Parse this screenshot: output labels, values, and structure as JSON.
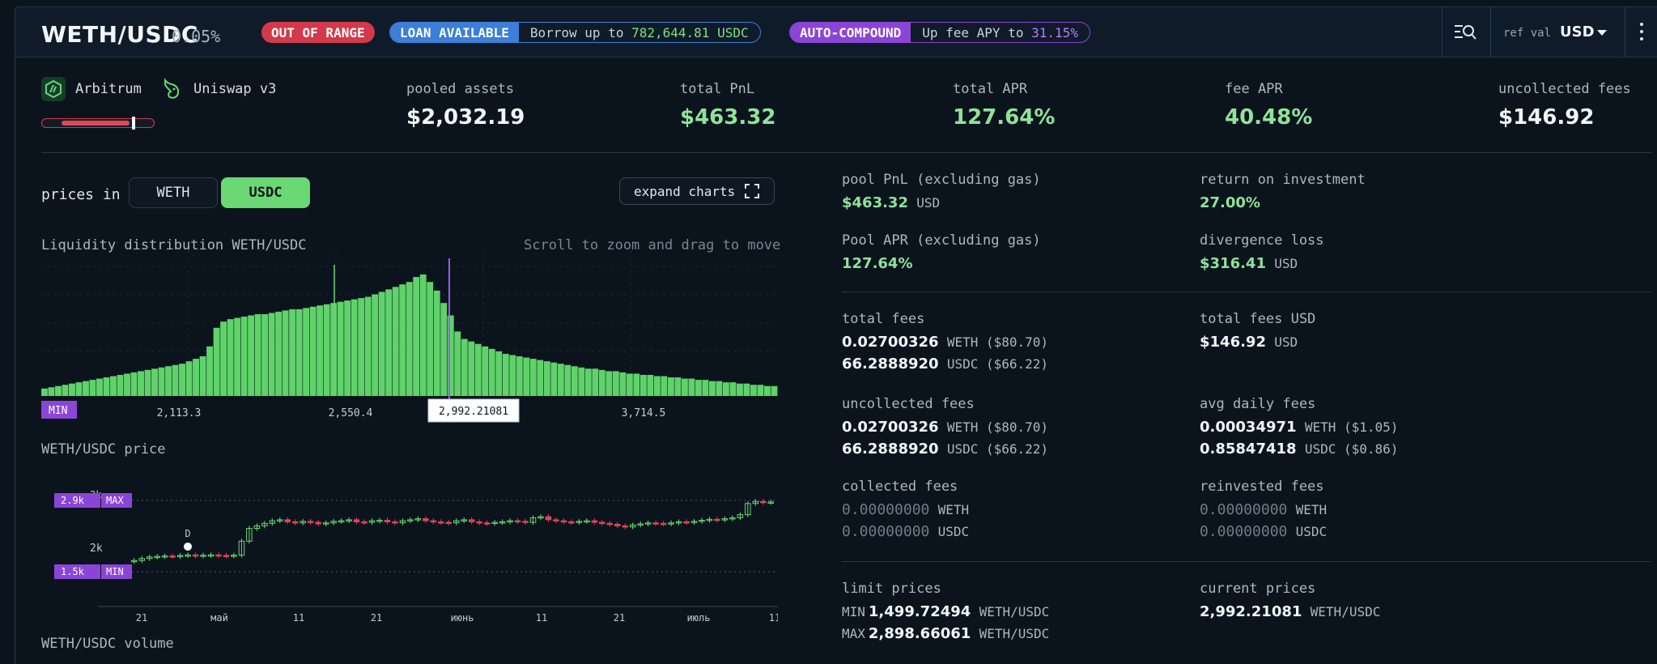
{
  "header": {
    "pair": "WETH/USDC",
    "fee_tier": "0.05%",
    "range_badge": "OUT OF RANGE",
    "loan_tag": "LOAN AVAILABLE",
    "loan_text_prefix": "Borrow up to",
    "loan_amount": "782,644.81",
    "loan_unit": "USDC",
    "auto_tag": "AUTO-COMPOUND",
    "auto_text_prefix": "Up fee APY to",
    "auto_value": "31.15%",
    "ref_val_label": "ref val",
    "ref_currency": "USD"
  },
  "network": {
    "chain": "Arbitrum",
    "protocol": "Uniswap v3"
  },
  "stats": [
    {
      "label": "pooled assets",
      "value": "$2,032.19",
      "positive": false
    },
    {
      "label": "total PnL",
      "value": "$463.32",
      "positive": true
    },
    {
      "label": "total APR",
      "value": "127.64%",
      "positive": true
    },
    {
      "label": "fee APR",
      "value": "40.48%",
      "positive": true
    },
    {
      "label": "uncollected fees",
      "value": "$146.92",
      "positive": false
    }
  ],
  "controls": {
    "prices_in": "prices in",
    "token_a": "WETH",
    "token_b": "USDC",
    "expand": "expand charts"
  },
  "liquidity": {
    "title": "Liquidity distribution WETH/USDC",
    "hint": "Scroll to zoom and drag to move",
    "min_label": "MIN",
    "ticks": [
      "2,113.3",
      "2,550.4",
      "3,714.5"
    ],
    "current_price": "2,992.21081",
    "bars": [
      6,
      7,
      8,
      9,
      10,
      11,
      12,
      13,
      14,
      15,
      16,
      17,
      18,
      19,
      20,
      21,
      22,
      23,
      24,
      25,
      26,
      28,
      30,
      32,
      40,
      55,
      60,
      62,
      63,
      64,
      65,
      66,
      66,
      67,
      68,
      69,
      70,
      70,
      71,
      72,
      73,
      74,
      75,
      76,
      77,
      78,
      79,
      80,
      82,
      84,
      86,
      88,
      90,
      92,
      96,
      98,
      92,
      85,
      75,
      65,
      52,
      46,
      44,
      42,
      40,
      38,
      36,
      34,
      33,
      32,
      31,
      30,
      29,
      28,
      27,
      26,
      25,
      24,
      23,
      22,
      22,
      21,
      20,
      20,
      19,
      18,
      18,
      17,
      17,
      16,
      16,
      15,
      15,
      14,
      14,
      13,
      13,
      12,
      12,
      11,
      11,
      10,
      10,
      9,
      9,
      8,
      8
    ]
  },
  "price_chart": {
    "title": "WETH/USDC price",
    "max_value": "2.9k",
    "max_tag": "MAX",
    "min_value": "1.5k",
    "min_tag": "MIN",
    "y_label_2k": "2k",
    "y_label_top": "3k",
    "marker": "D",
    "x_ticks": [
      "21",
      "май",
      "11",
      "21",
      "июнь",
      "11",
      "21",
      "июль",
      "11"
    ],
    "candles": [
      1720,
      1760,
      1790,
      1800,
      1810,
      1800,
      1820,
      1830,
      1815,
      1825,
      1830,
      1820,
      1810,
      1825,
      2100,
      2350,
      2400,
      2450,
      2500,
      2520,
      2480,
      2460,
      2490,
      2470,
      2440,
      2460,
      2490,
      2500,
      2520,
      2480,
      2470,
      2500,
      2510,
      2480,
      2460,
      2500,
      2520,
      2540,
      2500,
      2480,
      2470,
      2460,
      2500,
      2520,
      2480,
      2460,
      2450,
      2470,
      2480,
      2500,
      2490,
      2470,
      2560,
      2580,
      2520,
      2500,
      2480,
      2470,
      2490,
      2500,
      2470,
      2450,
      2430,
      2400,
      2380,
      2420,
      2440,
      2460,
      2450,
      2440,
      2460,
      2480,
      2470,
      2490,
      2510,
      2530,
      2520,
      2540,
      2560,
      2620,
      2840,
      2880,
      2860,
      2870
    ]
  },
  "volume_title": "WETH/USDC volume",
  "details": {
    "pool_pnl": {
      "label": "pool PnL (excluding gas)",
      "value": "$463.32",
      "unit": "USD"
    },
    "roi": {
      "label": "return on investment",
      "value": "27.00%"
    },
    "pool_apr": {
      "label": "Pool APR (excluding gas)",
      "value": "127.64%"
    },
    "divergence": {
      "label": "divergence loss",
      "value": "$316.41",
      "unit": "USD"
    },
    "total_fees": {
      "label": "total fees",
      "weth": "0.02700326",
      "weth_unit": "WETH ($80.70)",
      "usdc": "66.2888920",
      "usdc_unit": "USDC ($66.22)"
    },
    "total_fees_usd": {
      "label": "total fees USD",
      "value": "$146.92",
      "unit": "USD"
    },
    "uncollected": {
      "label": "uncollected fees",
      "weth": "0.02700326",
      "weth_unit": "WETH ($80.70)",
      "usdc": "66.2888920",
      "usdc_unit": "USDC ($66.22)"
    },
    "avg_daily": {
      "label": "avg daily fees",
      "weth": "0.00034971",
      "weth_unit": "WETH ($1.05)",
      "usdc": "0.85847418",
      "usdc_unit": "USDC ($0.86)"
    },
    "collected": {
      "label": "collected fees",
      "weth": "0.00000000",
      "weth_unit": "WETH",
      "usdc": "0.00000000",
      "usdc_unit": "USDC"
    },
    "reinvested": {
      "label": "reinvested fees",
      "weth": "0.00000000",
      "weth_unit": "WETH",
      "usdc": "0.00000000",
      "usdc_unit": "USDC"
    },
    "limit_prices": {
      "label": "limit prices",
      "min_pre": "MIN",
      "min": "1,499.72494",
      "max_pre": "MAX",
      "max": "2,898.66061",
      "unit": "WETH/USDC"
    },
    "current_prices": {
      "label": "current prices",
      "value": "2,992.21081",
      "unit": "WETH/USDC"
    }
  }
}
